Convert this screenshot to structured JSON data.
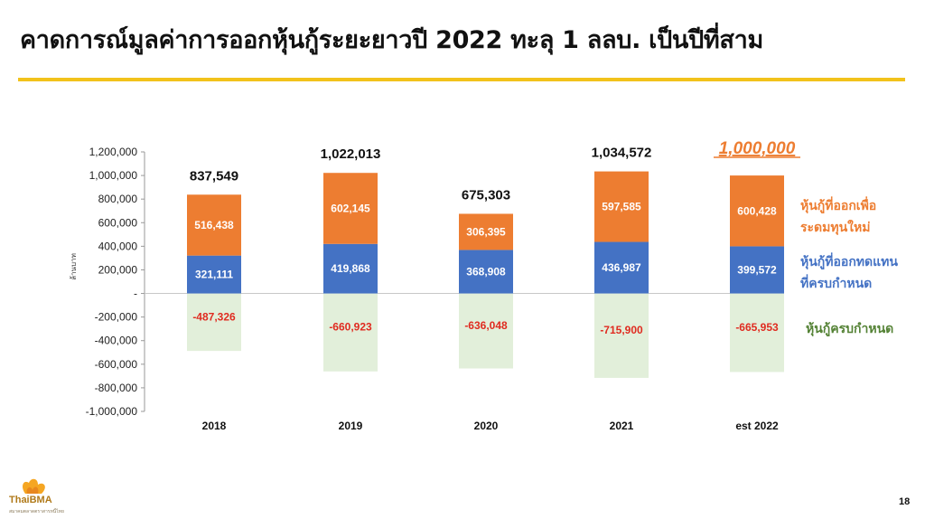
{
  "title": "คาดการณ์มูลค่าการออกหุ้นกู้ระยะยาวปี 2022 ทะลุ 1 ลลบ. เป็นปีที่สาม",
  "page_number": "18",
  "logo": {
    "name": "ThaiBMA",
    "subtitle": "สมาคมตลาดตราสารหนี้ไทย"
  },
  "legend": {
    "new_funding": [
      "หุ้นกู้ที่ออกเพื่อ",
      "ระดมทุนใหม่"
    ],
    "refinance": [
      "หุ้นกู้ที่ออกทดแทน",
      "ที่ครบกำหนด"
    ],
    "maturing": [
      "หุ้นกู้ครบกำหนด"
    ]
  },
  "colors": {
    "new_funding": "#ED7D31",
    "refinance": "#4472C4",
    "maturing": "#E2EFDA",
    "negative_label": "#E02B20",
    "title_rule": "#F2C21B"
  },
  "chart_data": {
    "type": "bar",
    "stacked": true,
    "categories": [
      "2018",
      "2019",
      "2020",
      "2021",
      "est 2022"
    ],
    "ylabel": "ล้านบาท",
    "ylim": [
      -1000000,
      1200000
    ],
    "yticks": [
      1200000,
      1000000,
      800000,
      600000,
      400000,
      200000,
      0,
      -200000,
      -400000,
      -600000,
      -800000,
      -1000000
    ],
    "ytick_labels": [
      "1,200,000",
      "1,000,000",
      "800,000",
      "600,000",
      "400,000",
      "200,000",
      "-",
      "-200,000",
      "-400,000",
      "-600,000",
      "-800,000",
      "-1,000,000"
    ],
    "series": [
      {
        "key": "refinance",
        "values": [
          321111,
          419868,
          368908,
          436987,
          399572
        ],
        "labels": [
          "321,111",
          "419,868",
          "368,908",
          "436,987",
          "399,572"
        ]
      },
      {
        "key": "new_funding",
        "values": [
          516438,
          602145,
          306395,
          597585,
          600428
        ],
        "labels": [
          "516,438",
          "602,145",
          "306,395",
          "597,585",
          "600,428"
        ]
      },
      {
        "key": "maturing",
        "values": [
          -487326,
          -660923,
          -636048,
          -715900,
          -665953
        ],
        "labels": [
          "-487,326",
          "-660,923",
          "-636,048",
          "-715,900",
          "-665,953"
        ]
      }
    ],
    "totals": [
      837549,
      1022013,
      675303,
      1034572,
      1000000
    ],
    "total_labels": [
      "837,549",
      "1,022,013",
      "675,303",
      "1,034,572",
      "1,000,000"
    ],
    "grid": false
  }
}
